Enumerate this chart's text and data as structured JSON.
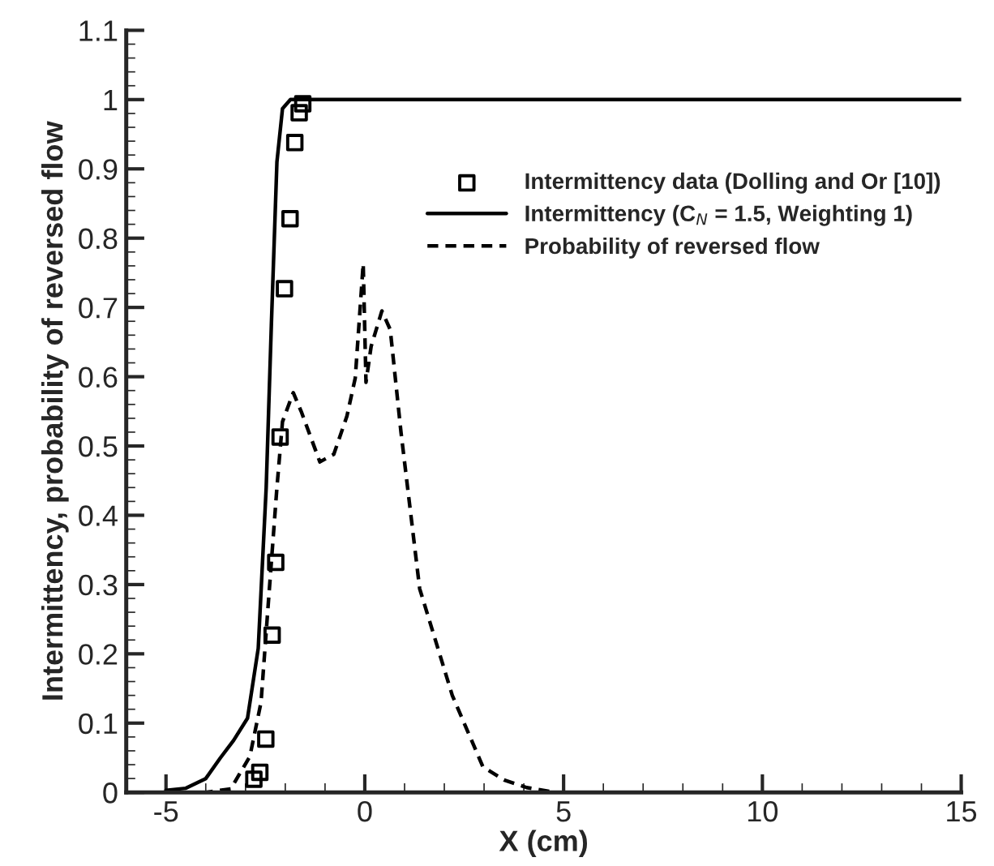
{
  "chart_data": {
    "type": "line",
    "xlabel": "X (cm)",
    "ylabel": "Intermittency, probability of reversed flow",
    "xlim": [
      -6,
      15
    ],
    "xticks": [
      -5,
      0,
      5,
      10,
      15
    ],
    "ylim": [
      0,
      1.1
    ],
    "yticks": [
      0,
      0.1,
      0.2,
      0.3,
      0.4,
      0.5,
      0.6,
      0.7,
      0.8,
      0.9,
      1,
      1.1
    ],
    "grid": false,
    "legend": "top right",
    "series": [
      {
        "name": "Intermittency data (Dolling and Or [10])",
        "type": "scatter",
        "marker": "square",
        "color": "#000000",
        "x": [
          -2.79,
          -2.64,
          -2.49,
          -2.33,
          -2.24,
          -2.13,
          -2.02,
          -1.88,
          -1.76,
          -1.65,
          -1.56
        ],
        "values": [
          0.019,
          0.029,
          0.077,
          0.227,
          0.332,
          0.513,
          0.727,
          0.828,
          0.938,
          0.981,
          0.994
        ]
      },
      {
        "name": "Intermittency (C$_{N}$ = 1.5, Weighting 1)",
        "line_style": "solid",
        "marker": "none",
        "color": "#000000",
        "x": [
          -5,
          -4.5,
          -4,
          -3.63,
          -3.3,
          -2.95,
          -2.68,
          -2.48,
          -2.35,
          -2.21,
          -2.07,
          -1.87,
          0,
          5,
          10,
          15
        ],
        "values": [
          0.003,
          0.006,
          0.02,
          0.05,
          0.075,
          0.107,
          0.208,
          0.44,
          0.675,
          0.91,
          0.987,
          1.0,
          1.0,
          1.0,
          1.0,
          1.0
        ]
      },
      {
        "name": "Probability of reversed flow",
        "line_style": "dashed",
        "marker": "none",
        "color": "#000000",
        "x": [
          -5,
          -4,
          -3.37,
          -2.89,
          -2.61,
          -2.41,
          -2.21,
          -2.07,
          -1.8,
          -1.6,
          -1.13,
          -0.78,
          -0.45,
          -0.24,
          -0.04,
          0.03,
          0.16,
          0.43,
          0.64,
          0.91,
          1.38,
          2.2,
          2.97,
          3.5,
          4.07,
          4.8
        ],
        "values": [
          0,
          0,
          0.005,
          0.052,
          0.13,
          0.286,
          0.44,
          0.535,
          0.577,
          0.55,
          0.477,
          0.488,
          0.543,
          0.598,
          0.763,
          0.592,
          0.644,
          0.695,
          0.668,
          0.52,
          0.294,
          0.14,
          0.037,
          0.018,
          0.007,
          0
        ]
      }
    ]
  }
}
